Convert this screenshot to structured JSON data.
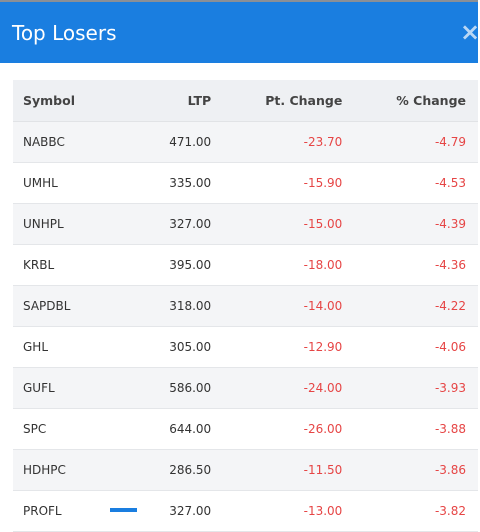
{
  "modal": {
    "title": "Top Losers",
    "close_label": "×"
  },
  "table": {
    "headers": {
      "symbol": "Symbol",
      "ltp": "LTP",
      "pt_change": "Pt. Change",
      "pct_change": "% Change"
    },
    "rows": [
      {
        "symbol": "NABBC",
        "ltp": "471.00",
        "pt_change": "-23.70",
        "pct_change": "-4.79"
      },
      {
        "symbol": "UMHL",
        "ltp": "335.00",
        "pt_change": "-15.90",
        "pct_change": "-4.53"
      },
      {
        "symbol": "UNHPL",
        "ltp": "327.00",
        "pt_change": "-15.00",
        "pct_change": "-4.39"
      },
      {
        "symbol": "KRBL",
        "ltp": "395.00",
        "pt_change": "-18.00",
        "pct_change": "-4.36"
      },
      {
        "symbol": "SAPDBL",
        "ltp": "318.00",
        "pt_change": "-14.00",
        "pct_change": "-4.22"
      },
      {
        "symbol": "GHL",
        "ltp": "305.00",
        "pt_change": "-12.90",
        "pct_change": "-4.06"
      },
      {
        "symbol": "GUFL",
        "ltp": "586.00",
        "pt_change": "-24.00",
        "pct_change": "-3.93"
      },
      {
        "symbol": "SPC",
        "ltp": "644.00",
        "pt_change": "-26.00",
        "pct_change": "-3.88"
      },
      {
        "symbol": "HDHPC",
        "ltp": "286.50",
        "pt_change": "-11.50",
        "pct_change": "-3.86"
      },
      {
        "symbol": "PROFL",
        "ltp": "327.00",
        "pt_change": "-13.00",
        "pct_change": "-3.82"
      }
    ]
  },
  "colors": {
    "header_bg": "#1a7ee0",
    "negative": "#e64545",
    "table_header_bg": "#eef0f3",
    "row_alt_bg": "#f4f5f7"
  }
}
